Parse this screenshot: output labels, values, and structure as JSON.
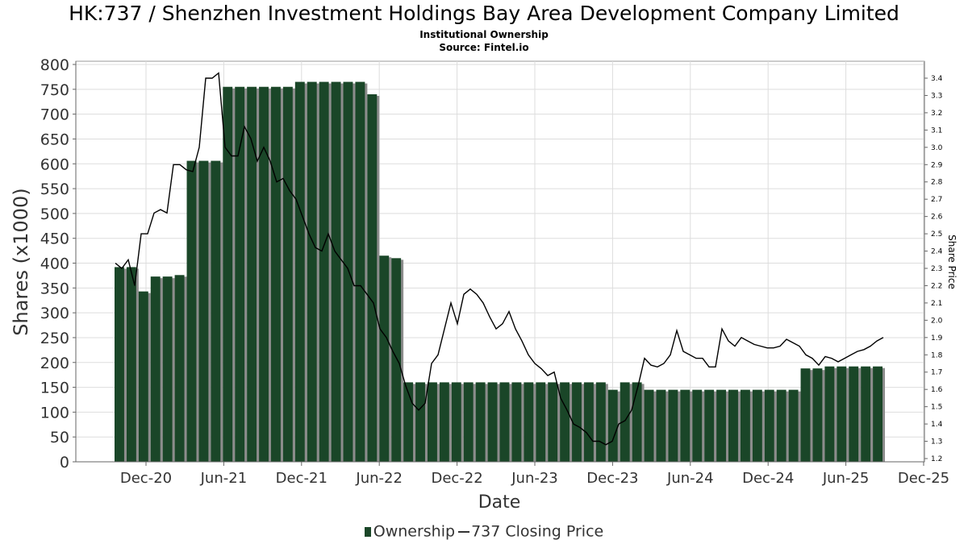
{
  "title": "HK:737 / Shenzhen Investment Holdings Bay Area Development Company Limited",
  "subtitle": "Institutional Ownership",
  "source": "Source: Fintel.io",
  "colors": {
    "bar": "#1a4628",
    "bar_shadow": "#8c8c8c",
    "line": "#000000",
    "grid": "#dddddd"
  },
  "chart_data": {
    "type": "bar",
    "xlabel": "Date",
    "ylabel": "Shares (x1000)",
    "y2label": "Share Price",
    "ylim": [
      0,
      800
    ],
    "y2lim": [
      1.2,
      3.45
    ],
    "yticks": [
      "0",
      "50",
      "100",
      "150",
      "200",
      "250",
      "300",
      "350",
      "400",
      "450",
      "500",
      "550",
      "600",
      "650",
      "700",
      "750",
      "800"
    ],
    "y2ticks": [
      "1.2",
      "1.3",
      "1.4",
      "1.5",
      "1.6",
      "1.7",
      "1.8",
      "1.9",
      "2.0",
      "2.1",
      "2.2",
      "2.3",
      "2.4",
      "2.5",
      "2.6",
      "2.7",
      "2.8",
      "2.9",
      "3.0",
      "3.1",
      "3.2",
      "3.3",
      "3.4"
    ],
    "xticks": [
      "Dec-20",
      "Jun-21",
      "Dec-21",
      "Jun-22",
      "Dec-22",
      "Jun-23",
      "Dec-23",
      "Jun-24",
      "Dec-24",
      "Jun-25",
      "Dec-25"
    ],
    "grid": true,
    "legend_position": "bottom",
    "series": [
      {
        "name": "Ownership",
        "type": "bar",
        "values": [
          392,
          392,
          343,
          373,
          373,
          376,
          606,
          606,
          606,
          755,
          755,
          755,
          755,
          755,
          755,
          765,
          765,
          765,
          765,
          765,
          765,
          740,
          415,
          410,
          160,
          160,
          160,
          160,
          160,
          160,
          160,
          160,
          160,
          160,
          160,
          160,
          160,
          160,
          160,
          160,
          160,
          145,
          160,
          160,
          145,
          145,
          145,
          145,
          145,
          145,
          145,
          145,
          145,
          145,
          145,
          145,
          145,
          188,
          188,
          192,
          192,
          192,
          192,
          192
        ]
      },
      {
        "name": "737 Closing Price",
        "type": "line",
        "values": [
          2.33,
          2.3,
          2.35,
          2.2,
          2.5,
          2.5,
          2.62,
          2.64,
          2.62,
          2.9,
          2.9,
          2.87,
          2.86,
          3.0,
          3.4,
          3.4,
          3.43,
          3.0,
          2.95,
          2.95,
          3.12,
          3.05,
          2.92,
          3.0,
          2.92,
          2.8,
          2.82,
          2.75,
          2.7,
          2.6,
          2.5,
          2.42,
          2.4,
          2.5,
          2.4,
          2.35,
          2.3,
          2.2,
          2.2,
          2.15,
          2.1,
          1.95,
          1.9,
          1.82,
          1.75,
          1.62,
          1.52,
          1.48,
          1.52,
          1.75,
          1.8,
          1.95,
          2.1,
          1.98,
          2.15,
          2.18,
          2.15,
          2.1,
          2.02,
          1.95,
          1.98,
          2.05,
          1.95,
          1.88,
          1.8,
          1.75,
          1.72,
          1.68,
          1.7,
          1.55,
          1.48,
          1.4,
          1.38,
          1.35,
          1.3,
          1.3,
          1.28,
          1.3,
          1.4,
          1.42,
          1.48,
          1.62,
          1.78,
          1.74,
          1.73,
          1.75,
          1.8,
          1.94,
          1.82,
          1.8,
          1.78,
          1.78,
          1.73,
          1.73,
          1.95,
          1.88,
          1.85,
          1.9,
          1.88,
          1.86,
          1.85,
          1.84,
          1.84,
          1.85,
          1.89,
          1.87,
          1.85,
          1.8,
          1.78,
          1.74,
          1.79,
          1.78,
          1.76,
          1.78,
          1.8,
          1.82,
          1.83,
          1.85,
          1.88,
          1.9
        ]
      }
    ]
  }
}
